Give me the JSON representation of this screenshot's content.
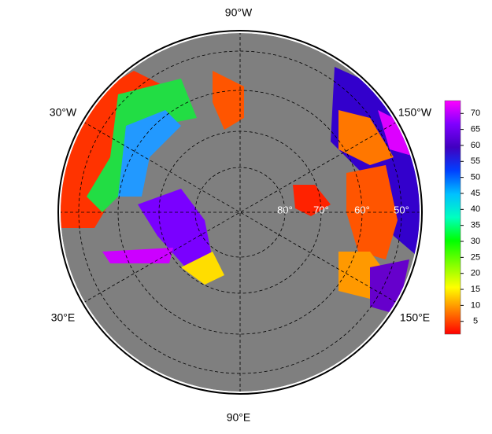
{
  "map": {
    "longitude_labels": [
      "90°W",
      "30°W",
      "150°W",
      "30°E",
      "150°E",
      "90°E"
    ],
    "latitude_labels": [
      "80°",
      "70°",
      "60°",
      "50°"
    ],
    "colorbar": {
      "lim": [
        1,
        74
      ],
      "ticks": [
        5,
        10,
        15,
        20,
        25,
        30,
        35,
        40,
        45,
        50,
        55,
        60,
        65,
        70
      ],
      "colors": [
        "#ff0000",
        "#ff8000",
        "#ffff00",
        "#80ff00",
        "#00ff00",
        "#00ffc0",
        "#00c0ff",
        "#0040ff",
        "#4000c0",
        "#8000ff",
        "#ff00ff"
      ]
    }
  }
}
